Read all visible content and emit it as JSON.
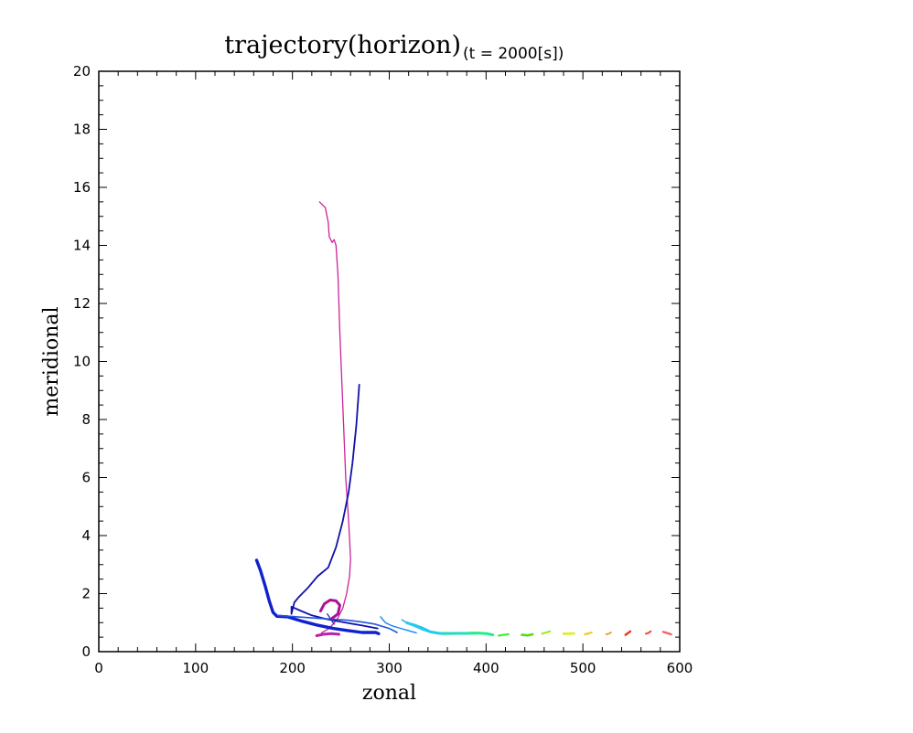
{
  "chart_data": {
    "type": "line",
    "title": "trajectory(horizon)",
    "subtitle": "(t = 2000[s])",
    "xlabel": "zonal",
    "ylabel": "meridional",
    "xlim": [
      0,
      600
    ],
    "ylim": [
      0,
      20
    ],
    "xticks": [
      0,
      100,
      200,
      300,
      400,
      500,
      600
    ],
    "yticks": [
      0,
      2,
      4,
      6,
      8,
      10,
      12,
      14,
      16,
      18,
      20
    ],
    "grid": false,
    "legend": "none",
    "series": [
      {
        "color": "#cc2299",
        "width": 1.3,
        "points": [
          [
            228,
            15.5
          ],
          [
            234,
            15.3
          ],
          [
            237,
            14.8
          ],
          [
            238,
            14.3
          ],
          [
            241,
            14.1
          ],
          [
            243,
            14.2
          ],
          [
            245,
            14.0
          ],
          [
            247,
            13.0
          ],
          [
            249,
            11.0
          ],
          [
            252,
            8.5
          ],
          [
            255,
            6.0
          ],
          [
            258,
            4.5
          ],
          [
            260,
            3.2
          ],
          [
            259,
            2.6
          ],
          [
            256,
            2.0
          ],
          [
            252,
            1.5
          ],
          [
            246,
            1.1
          ],
          [
            238,
            0.8
          ],
          [
            230,
            0.65
          ]
        ]
      },
      {
        "color": "#1111aa",
        "width": 1.8,
        "points": [
          [
            269,
            9.2
          ],
          [
            266,
            7.8
          ],
          [
            262,
            6.5
          ],
          [
            258,
            5.5
          ],
          [
            252,
            4.5
          ],
          [
            245,
            3.6
          ],
          [
            237,
            2.9
          ],
          [
            226,
            2.6
          ],
          [
            216,
            2.2
          ],
          [
            207,
            1.9
          ],
          [
            202,
            1.7
          ],
          [
            199,
            1.3
          ],
          [
            199,
            1.55
          ],
          [
            209,
            1.4
          ],
          [
            220,
            1.25
          ],
          [
            235,
            1.12
          ],
          [
            255,
            1.0
          ],
          [
            272,
            0.9
          ],
          [
            288,
            0.8
          ]
        ]
      },
      {
        "color": "#1122cc",
        "width": 3.4,
        "points": [
          [
            163,
            3.15
          ],
          [
            167,
            2.8
          ],
          [
            172,
            2.25
          ],
          [
            176,
            1.75
          ],
          [
            180,
            1.35
          ],
          [
            184,
            1.22
          ],
          [
            195,
            1.2
          ],
          [
            210,
            1.05
          ],
          [
            225,
            0.92
          ],
          [
            242,
            0.8
          ],
          [
            258,
            0.72
          ],
          [
            272,
            0.66
          ],
          [
            286,
            0.66
          ],
          [
            289,
            0.62
          ]
        ]
      },
      {
        "color": "#2255dd",
        "width": 1.6,
        "points": [
          [
            185,
            1.25
          ],
          [
            205,
            1.2
          ],
          [
            222,
            1.16
          ],
          [
            240,
            1.12
          ],
          [
            258,
            1.08
          ],
          [
            272,
            1.02
          ],
          [
            285,
            0.95
          ],
          [
            300,
            0.8
          ],
          [
            308,
            0.66
          ]
        ]
      },
      {
        "color": "#aa1199",
        "width": 3.0,
        "points": [
          [
            229,
            1.4
          ],
          [
            233,
            1.65
          ],
          [
            239,
            1.78
          ],
          [
            245,
            1.75
          ],
          [
            249,
            1.6
          ],
          [
            247,
            1.3
          ],
          [
            241,
            1.15
          ]
        ]
      },
      {
        "color": "#3333bb",
        "width": 1.4,
        "points": [
          [
            236,
            1.3
          ],
          [
            240,
            1.1
          ],
          [
            243,
            0.95
          ]
        ]
      },
      {
        "color": "#bb22aa",
        "width": 3.0,
        "points": [
          [
            225,
            0.55
          ],
          [
            232,
            0.6
          ],
          [
            240,
            0.62
          ],
          [
            248,
            0.6
          ]
        ]
      },
      {
        "color": "#1188ee",
        "width": 1.4,
        "points": [
          [
            291,
            1.2
          ],
          [
            296,
            1.0
          ],
          [
            302,
            0.9
          ],
          [
            310,
            0.82
          ],
          [
            320,
            0.72
          ],
          [
            328,
            0.65
          ]
        ]
      },
      {
        "color": "#11aaee",
        "width": 1.4,
        "points": [
          [
            313,
            1.1
          ],
          [
            318,
            1.0
          ],
          [
            325,
            0.95
          ],
          [
            333,
            0.85
          ],
          [
            340,
            0.75
          ]
        ]
      },
      {
        "color": "#22ccee",
        "width": 3.0,
        "points": [
          [
            318,
            1.0
          ],
          [
            326,
            0.9
          ],
          [
            334,
            0.78
          ],
          [
            343,
            0.68
          ],
          [
            352,
            0.63
          ],
          [
            362,
            0.63
          ]
        ]
      },
      {
        "color": "#22ddbb",
        "width": 3.0,
        "points": [
          [
            355,
            0.62
          ],
          [
            368,
            0.63
          ],
          [
            380,
            0.63
          ],
          [
            390,
            0.64
          ]
        ]
      },
      {
        "color": "#22ee88",
        "width": 3.0,
        "points": [
          [
            383,
            0.64
          ],
          [
            393,
            0.64
          ],
          [
            401,
            0.62
          ],
          [
            407,
            0.58
          ]
        ]
      },
      {
        "color": "#44ee33",
        "width": 2.2,
        "points": [
          [
            413,
            0.55
          ],
          [
            418,
            0.58
          ],
          [
            423,
            0.6
          ]
        ]
      },
      {
        "color": "#55dd11",
        "width": 2.6,
        "points": [
          [
            437,
            0.58
          ],
          [
            443,
            0.56
          ],
          [
            448,
            0.6
          ]
        ]
      },
      {
        "color": "#99ee22",
        "width": 2.2,
        "points": [
          [
            458,
            0.62
          ],
          [
            462,
            0.66
          ],
          [
            466,
            0.7
          ]
        ]
      },
      {
        "color": "#ddee22",
        "width": 2.6,
        "points": [
          [
            480,
            0.62
          ],
          [
            486,
            0.62
          ],
          [
            491,
            0.63
          ]
        ]
      },
      {
        "color": "#eecc22",
        "width": 2.2,
        "points": [
          [
            502,
            0.6
          ],
          [
            506,
            0.63
          ],
          [
            509,
            0.66
          ]
        ]
      },
      {
        "color": "#ee9922",
        "width": 1.8,
        "points": [
          [
            524,
            0.6
          ],
          [
            527,
            0.62
          ],
          [
            529,
            0.66
          ]
        ]
      },
      {
        "color": "#ee3322",
        "width": 2.4,
        "points": [
          [
            544,
            0.58
          ],
          [
            547,
            0.65
          ],
          [
            549,
            0.7
          ]
        ]
      },
      {
        "color": "#ee5544",
        "width": 2.2,
        "points": [
          [
            565,
            0.62
          ],
          [
            568,
            0.65
          ],
          [
            570,
            0.7
          ]
        ]
      },
      {
        "color": "#ee6666",
        "width": 2.4,
        "points": [
          [
            583,
            0.68
          ],
          [
            587,
            0.64
          ],
          [
            591,
            0.6
          ]
        ]
      }
    ]
  }
}
